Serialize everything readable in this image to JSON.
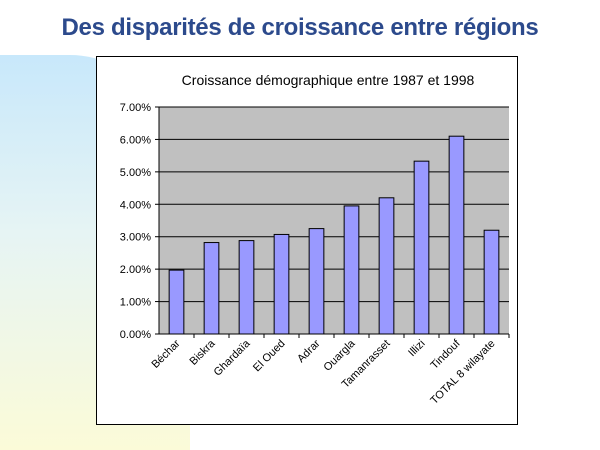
{
  "slide": {
    "title": "Des disparités de croissance entre régions"
  },
  "colors": {
    "title": "#2c4a8c",
    "plot_background": "#c0c0c0",
    "bar_fill": "#9999ff",
    "bar_stroke": "#000000",
    "gridline": "#000000"
  },
  "chart_data": {
    "type": "bar",
    "title": "Croissance démographique entre 1987 et 1998",
    "xlabel": "",
    "ylabel": "",
    "categories": [
      "Béchar",
      "Biskra",
      "Ghardaïa",
      "El Oued",
      "Adrar",
      "Ouargla",
      "Tamanrasset",
      "Illizi",
      "Tindouf",
      "TOTAL 8 wilayate"
    ],
    "values": [
      1.97,
      2.82,
      2.88,
      3.07,
      3.25,
      3.95,
      4.2,
      5.33,
      6.1,
      3.2
    ],
    "value_unit": "%",
    "ylim": [
      0,
      7
    ],
    "yticks": [
      "0.00%",
      "1.00%",
      "2.00%",
      "3.00%",
      "4.00%",
      "5.00%",
      "6.00%",
      "7.00%"
    ],
    "grid": true,
    "legend": "none"
  }
}
